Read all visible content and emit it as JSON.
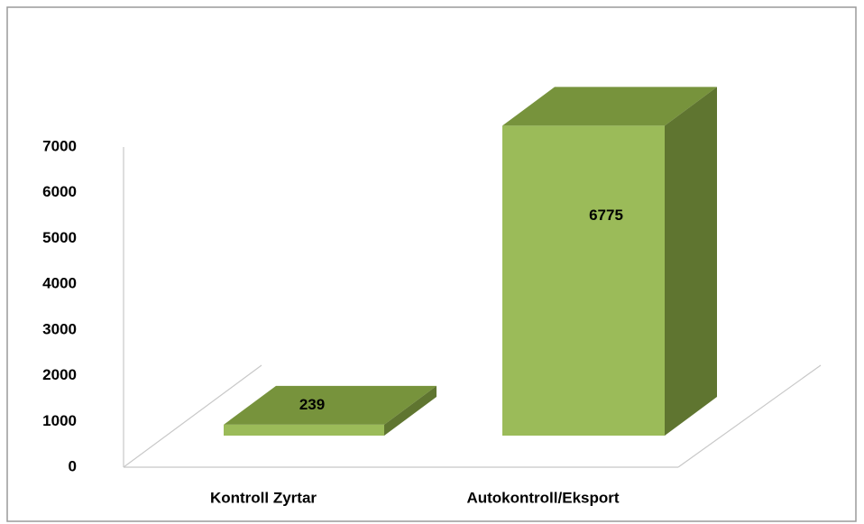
{
  "chart_data": {
    "type": "bar3d",
    "categories": [
      "Kontroll Zyrtar",
      "Autokontroll/Eksport"
    ],
    "values": [
      239,
      6775
    ],
    "color": "#9bbb59",
    "top_color": "#77933c",
    "side_color": "#5f7530",
    "ylim": [
      0,
      7000
    ],
    "yticks": [
      0,
      1000,
      2000,
      3000,
      4000,
      5000,
      6000,
      7000
    ],
    "grid": false
  }
}
